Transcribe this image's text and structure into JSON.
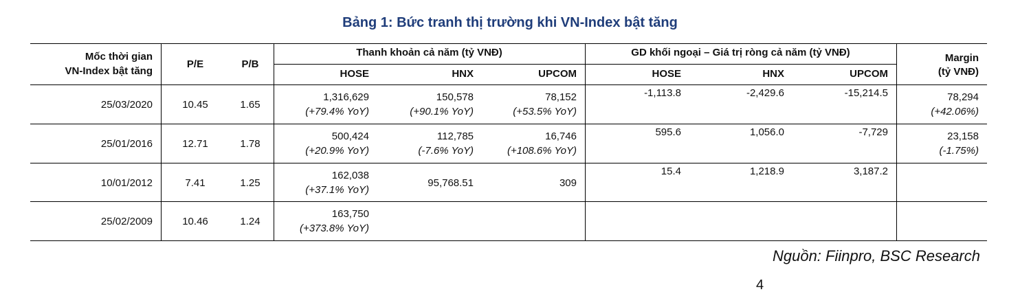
{
  "title": "Bảng 1: Bức tranh thị trường khi VN-Index bật tăng",
  "headers": {
    "date_line1": "Mốc thời gian",
    "date_line2": "VN-Index bật tăng",
    "pe": "P/E",
    "pb": "P/B",
    "liquidity_group": "Thanh khoản cả năm (tỷ VNĐ)",
    "foreign_group": "GD khối ngoại – Giá trị ròng cả năm (tỷ VNĐ)",
    "hose": "HOSE",
    "hnx": "HNX",
    "upcom": "UPCOM",
    "margin_line1": "Margin",
    "margin_line2": "(tỷ VNĐ)"
  },
  "rows": [
    {
      "date": "25/03/2020",
      "pe": "10.45",
      "pb": "1.65",
      "liq_hose": "1,316,629",
      "liq_hose_yoy": "(+79.4% YoY)",
      "liq_hnx": "150,578",
      "liq_hnx_yoy": "(+90.1% YoY)",
      "liq_upcom": "78,152",
      "liq_upcom_yoy": "(+53.5% YoY)",
      "for_hose": "-1,113.8",
      "for_hnx": "-2,429.6",
      "for_upcom": "-15,214.5",
      "margin": "78,294",
      "margin_yoy": "(+42.06%)"
    },
    {
      "date": "25/01/2016",
      "pe": "12.71",
      "pb": "1.78",
      "liq_hose": "500,424",
      "liq_hose_yoy": "(+20.9% YoY)",
      "liq_hnx": "112,785",
      "liq_hnx_yoy": "(-7.6% YoY)",
      "liq_upcom": "16,746",
      "liq_upcom_yoy": "(+108.6% YoY)",
      "for_hose": "595.6",
      "for_hnx": "1,056.0",
      "for_upcom": "-7,729",
      "margin": "23,158",
      "margin_yoy": "(-1.75%)"
    },
    {
      "date": "10/01/2012",
      "pe": "7.41",
      "pb": "1.25",
      "liq_hose": "162,038",
      "liq_hose_yoy": "(+37.1% YoY)",
      "liq_hnx": "95,768.51",
      "liq_hnx_yoy": "",
      "liq_upcom": "309",
      "liq_upcom_yoy": "",
      "for_hose": "15.4",
      "for_hnx": "1,218.9",
      "for_upcom": "3,187.2",
      "margin": "",
      "margin_yoy": ""
    },
    {
      "date": "25/02/2009",
      "pe": "10.46",
      "pb": "1.24",
      "liq_hose": "163,750",
      "liq_hose_yoy": "(+373.8% YoY)",
      "liq_hnx": "",
      "liq_hnx_yoy": "",
      "liq_upcom": "",
      "liq_upcom_yoy": "",
      "for_hose": "",
      "for_hnx": "",
      "for_upcom": "",
      "margin": "",
      "margin_yoy": ""
    }
  ],
  "source": "Nguồn: Fiinpro, BSC Research",
  "page_number": "4"
}
